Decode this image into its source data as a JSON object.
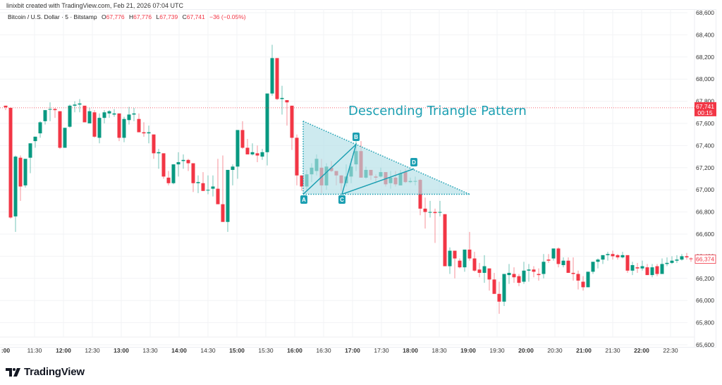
{
  "header": {
    "credit": "linixbit created with TradingView.com, Feb 21, 2026 07:04 UTC"
  },
  "legend": {
    "symbol": "Bitcoin / U.S. Dollar · 5 · Bitstamp",
    "open_label": "O",
    "open": "67,776",
    "high_label": "H",
    "high": "67,776",
    "low_label": "L",
    "low": "67,739",
    "close_label": "C",
    "close": "67,741",
    "change": "−36 (−0.05%)"
  },
  "annotation": {
    "title": "Descending Triangle Pattern",
    "points": [
      "A",
      "B",
      "C",
      "D"
    ],
    "color": "#1b9fb2"
  },
  "price_axis": {
    "labels": [
      "68,600",
      "68,400",
      "68,200",
      "68,000",
      "67,800",
      "67,600",
      "67,400",
      "67,200",
      "67,000",
      "66,800",
      "66,600",
      "66,400",
      "66,200",
      "66,000",
      "65,800",
      "65,600"
    ],
    "last_price": "67,741",
    "countdown": "00:15",
    "crosshair_price": "66,374"
  },
  "time_axis": {
    "labels": [
      ":00",
      "11:30",
      "12:00",
      "12:30",
      "13:00",
      "13:30",
      "14:00",
      "14:30",
      "15:00",
      "15:30",
      "16:00",
      "16:30",
      "17:00",
      "17:30",
      "18:00",
      "18:30",
      "19:00",
      "19:30",
      "20:00",
      "20:30",
      "21:00",
      "21:30",
      "22:00",
      "22:30"
    ]
  },
  "colors": {
    "up": "#089981",
    "down": "#f23645",
    "pattern": "#1b9fb2",
    "pattern_fill": "#b2dfe6"
  },
  "footer": {
    "brand": "TradingView"
  },
  "chart_data": {
    "type": "candlestick",
    "title": "Bitcoin / U.S. Dollar · 5 · Bitstamp",
    "xlabel": "",
    "ylabel": "",
    "ylim": [
      65600,
      68600
    ],
    "interval": "5m",
    "annotation": "Descending Triangle Pattern",
    "candles_ohlc_approx": [
      [
        67740,
        67760,
        67720,
        67745
      ],
      [
        67740,
        67745,
        66730,
        66750
      ],
      [
        66760,
        67310,
        66620,
        67300
      ],
      [
        67290,
        67310,
        66880,
        67020
      ],
      [
        67040,
        67270,
        67000,
        67280
      ],
      [
        67290,
        67430,
        67150,
        67430
      ],
      [
        67450,
        67520,
        67400,
        67500
      ],
      [
        67510,
        67630,
        67470,
        67620
      ],
      [
        67630,
        67700,
        67580,
        67740
      ],
      [
        67740,
        67790,
        67600,
        67750
      ],
      [
        67730,
        67740,
        67640,
        67720
      ],
      [
        67700,
        67710,
        67380,
        67390
      ],
      [
        67380,
        67560,
        67380,
        67570
      ],
      [
        67580,
        67770,
        67570,
        67740
      ],
      [
        67740,
        67810,
        67690,
        67760
      ],
      [
        67770,
        67820,
        67690,
        67770
      ],
      [
        67740,
        67750,
        67640,
        67620
      ],
      [
        67620,
        67730,
        67610,
        67710
      ],
      [
        67700,
        67720,
        67470,
        67470
      ],
      [
        67460,
        67690,
        67410,
        67650
      ],
      [
        67650,
        67720,
        67590,
        67700
      ],
      [
        67690,
        67720,
        67640,
        67700
      ],
      [
        67660,
        67730,
        67640,
        67670
      ],
      [
        67670,
        67670,
        67450,
        67480
      ],
      [
        67520,
        67620,
        67440,
        67510
      ]
    ]
  }
}
